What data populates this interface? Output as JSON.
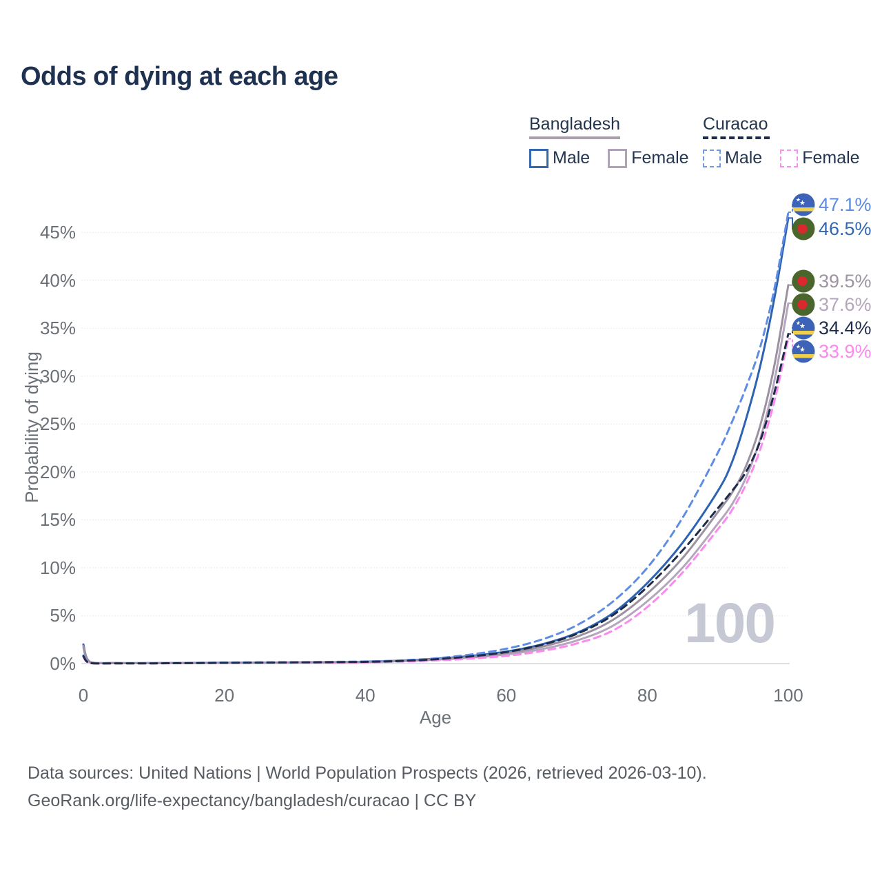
{
  "title": "Odds of dying at each age",
  "legend": {
    "groups": [
      {
        "name": "Bangladesh",
        "line_style": "solid",
        "line_color": "#a89eac",
        "items": [
          {
            "label": "Male",
            "color": "#3367b0",
            "style": "solid"
          },
          {
            "label": "Female",
            "color": "#b1a3b7",
            "style": "solid"
          }
        ]
      },
      {
        "name": "Curacao",
        "line_style": "dashed",
        "line_color": "#1f2c49",
        "items": [
          {
            "label": "Male",
            "color": "#6d99e8",
            "style": "dashed"
          },
          {
            "label": "Female",
            "color": "#fb8cf2",
            "style": "dashed"
          }
        ]
      }
    ]
  },
  "chart_data": {
    "type": "line",
    "title": "Odds of dying at each age",
    "xlabel": "Age",
    "ylabel": "Probability of dying",
    "xlim": [
      0,
      100
    ],
    "ylim": [
      0,
      48
    ],
    "grid": true,
    "legend_position": "top-right",
    "xticks": [
      0,
      20,
      40,
      60,
      80,
      100
    ],
    "yticks_percent": [
      0,
      5,
      10,
      15,
      20,
      25,
      30,
      35,
      40,
      45
    ],
    "ages": [
      0,
      1,
      5,
      10,
      15,
      20,
      25,
      30,
      35,
      40,
      45,
      50,
      55,
      60,
      65,
      70,
      75,
      80,
      85,
      90,
      92,
      94,
      96,
      98,
      100
    ],
    "series": [
      {
        "id": "bd_male",
        "name": "Bangladesh Male",
        "color": "#2e63b1",
        "style": "solid",
        "end_label": "46.5%",
        "values": [
          2.0,
          0.15,
          0.06,
          0.05,
          0.07,
          0.09,
          0.1,
          0.12,
          0.15,
          0.2,
          0.3,
          0.5,
          0.8,
          1.25,
          2.0,
          3.2,
          5.2,
          8.4,
          12.6,
          18.0,
          21.0,
          25.5,
          31.0,
          38.0,
          46.5
        ]
      },
      {
        "id": "bd_female",
        "name": "Bangladesh Female",
        "color": "#b4a6bc",
        "style": "solid",
        "end_label": "37.6%",
        "values": [
          1.65,
          0.12,
          0.05,
          0.04,
          0.05,
          0.07,
          0.08,
          0.1,
          0.12,
          0.16,
          0.25,
          0.4,
          0.62,
          0.95,
          1.5,
          2.4,
          3.9,
          6.5,
          10.0,
          14.6,
          16.6,
          19.4,
          23.4,
          29.4,
          37.6
        ]
      },
      {
        "id": "bd_all",
        "name": "Bangladesh Both sexes",
        "color": "#9b91a1",
        "style": "solid",
        "end_label": "39.5%",
        "values": [
          1.85,
          0.14,
          0.055,
          0.045,
          0.06,
          0.08,
          0.09,
          0.11,
          0.135,
          0.18,
          0.28,
          0.45,
          0.7,
          1.1,
          1.75,
          2.8,
          4.5,
          7.3,
          11.0,
          15.8,
          17.8,
          20.6,
          24.8,
          31.0,
          39.5
        ]
      },
      {
        "id": "cw_male",
        "name": "Curacao Male",
        "color": "#5f8de4",
        "style": "dashed",
        "end_label": "47.1%",
        "values": [
          0.85,
          0.06,
          0.03,
          0.03,
          0.06,
          0.1,
          0.12,
          0.14,
          0.18,
          0.22,
          0.33,
          0.55,
          0.95,
          1.55,
          2.5,
          4.0,
          6.4,
          10.0,
          15.2,
          22.0,
          25.2,
          28.8,
          33.0,
          39.0,
          47.1
        ]
      },
      {
        "id": "cw_female",
        "name": "Curacao Female",
        "color": "#fb8af0",
        "style": "dashed",
        "end_label": "33.9%",
        "values": [
          0.68,
          0.04,
          0.02,
          0.02,
          0.04,
          0.06,
          0.07,
          0.09,
          0.1,
          0.13,
          0.2,
          0.33,
          0.52,
          0.8,
          1.3,
          2.1,
          3.4,
          5.9,
          9.5,
          14.0,
          16.0,
          18.7,
          22.3,
          27.3,
          33.9
        ]
      },
      {
        "id": "cw_all",
        "name": "Curacao Both sexes",
        "color": "#1f2c49",
        "style": "dashed",
        "end_label": "34.4%",
        "values": [
          0.78,
          0.05,
          0.025,
          0.025,
          0.05,
          0.08,
          0.1,
          0.12,
          0.14,
          0.18,
          0.27,
          0.45,
          0.75,
          1.2,
          1.95,
          3.1,
          5.0,
          8.0,
          11.8,
          16.2,
          18.0,
          20.0,
          23.2,
          28.2,
          34.4
        ]
      }
    ]
  },
  "end_labels": [
    {
      "value": "47.1%",
      "color": "#5b8ce0",
      "flag": "curacao",
      "series": "cw_male"
    },
    {
      "value": "46.5%",
      "color": "#3367b0",
      "flag": "bangladesh",
      "series": "bd_male"
    },
    {
      "value": "39.5%",
      "color": "#9d94a3",
      "flag": "bangladesh",
      "series": "bd_all"
    },
    {
      "value": "37.6%",
      "color": "#b5a6bc",
      "flag": "bangladesh",
      "series": "bd_female"
    },
    {
      "value": "34.4%",
      "color": "#1f2c49",
      "flag": "curacao",
      "series": "cw_all"
    },
    {
      "value": "33.9%",
      "color": "#fb8af0",
      "flag": "curacao",
      "series": "cw_female"
    }
  ],
  "watermark": "100",
  "axis": {
    "xlabel": "Age",
    "ylabel": "Probability of dying"
  },
  "footer": {
    "line1": "Data sources: United Nations | World Population Prospects (2026, retrieved 2026-03-10).",
    "line2": "GeoRank.org/life-expectancy/bangladesh/curacao | CC BY"
  },
  "flags": {
    "curacao": {
      "field": "#3c63b8",
      "stripe": "#f0cf4a",
      "star": "#ffffff"
    },
    "bangladesh": {
      "field": "#4b662c",
      "disc": "#d9292e"
    }
  },
  "colors": {
    "title": "#1e3150",
    "tick": "#6a7076",
    "grid": "#ededf1",
    "zero_line": "#d2d5db",
    "watermark": "#c6c9d3",
    "footer": "#575c63"
  }
}
